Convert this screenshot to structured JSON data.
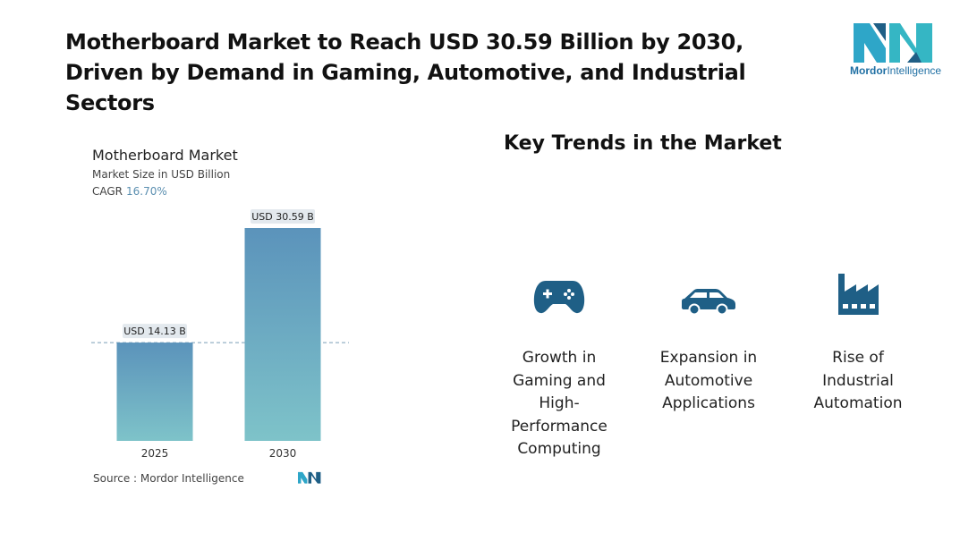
{
  "header": {
    "title": "Motherboard Market to Reach USD 30.59 Billion by 2030, Driven by Demand in Gaming, Automotive, and Industrial Sectors"
  },
  "logo": {
    "brand_word1": "Mordor",
    "brand_word2": "Intelligence",
    "icon": "mordor-intelligence-logo"
  },
  "chart_meta": {
    "title": "Motherboard Market",
    "subtitle": "Market Size in USD Billion",
    "cagr_label": "CAGR",
    "cagr_value": "16.70%",
    "source": "Source :  Mordor Intelligence"
  },
  "chart_data": {
    "type": "bar",
    "title": "Motherboard Market",
    "ylabel": "Market Size in USD Billion",
    "categories": [
      "2025",
      "2030"
    ],
    "values": [
      14.13,
      30.59
    ],
    "value_labels": [
      "USD 14.13 B",
      "USD 30.59 B"
    ],
    "ylim": [
      0,
      30.59
    ],
    "reference_line": 14.13,
    "grid": false,
    "colors": {
      "bar_top": "#5b93bb",
      "bar_bottom": "#7ec3c9",
      "label_bg": "#e3e9ee"
    }
  },
  "trends": {
    "title": "Key Trends in the Market",
    "items": [
      {
        "icon": "gamepad-icon",
        "label": "Growth in Gaming and High-Performance Computing"
      },
      {
        "icon": "car-icon",
        "label": "Expansion in Automotive Applications"
      },
      {
        "icon": "factory-icon",
        "label": "Rise of Industrial Automation"
      }
    ],
    "icon_color": "#1f5f86"
  }
}
